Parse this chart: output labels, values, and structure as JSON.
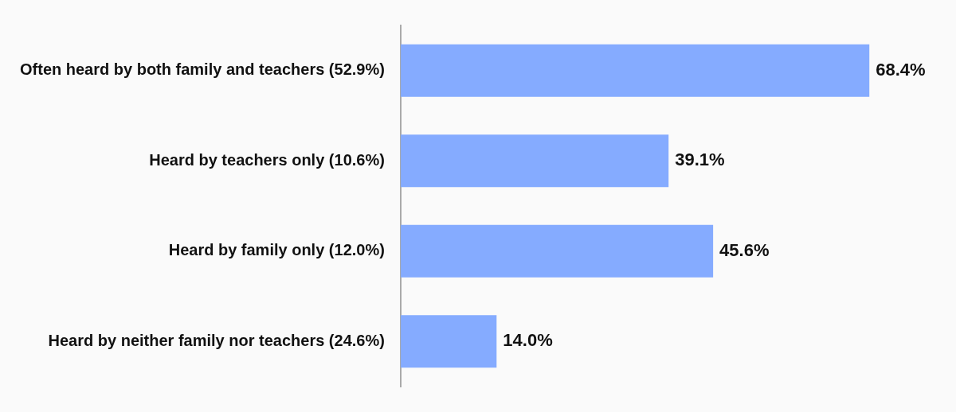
{
  "chart_data": {
    "type": "bar",
    "orientation": "horizontal",
    "categories": [
      "Often heard by both family and teachers (52.9%)",
      "Heard by teachers only (10.6%)",
      "Heard by family only (12.0%)",
      "Heard by neither family nor teachers (24.6%)"
    ],
    "values": [
      68.4,
      39.1,
      45.6,
      14.0
    ],
    "value_labels": [
      "68.4%",
      "39.1%",
      "45.6%",
      "14.0%"
    ],
    "color": "#85abff",
    "legend": false
  }
}
